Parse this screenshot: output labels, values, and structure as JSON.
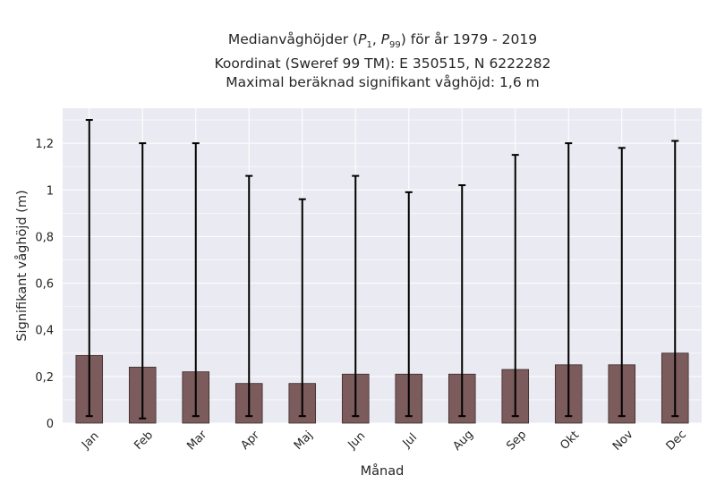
{
  "chart_data": {
    "type": "bar",
    "title_lines": [
      "Medianvåghöjder (P1, P99) för år 1979 - 2019",
      "Koordinat (Sweref 99 TM): E 350515, N 6222282",
      "Maximal beräknad signifikant våghöjd: 1,6 m"
    ],
    "title_math": {
      "prefix": "Medianvåghöjder (",
      "p1": "P",
      "p1_sub": "1",
      "p99": "P",
      "p99_sub": "99",
      "suffix": ") för år 1979 - 2019"
    },
    "xlabel": "Månad",
    "ylabel": "Signifikant våghöjd (m)",
    "categories": [
      "Jan",
      "Feb",
      "Mar",
      "Apr",
      "Maj",
      "Jun",
      "Jul",
      "Aug",
      "Sep",
      "Okt",
      "Nov",
      "Dec"
    ],
    "series": [
      {
        "values": [
          0.29,
          0.24,
          0.22,
          0.17,
          0.17,
          0.21,
          0.21,
          0.21,
          0.23,
          0.25,
          0.25,
          0.3
        ],
        "error_low": [
          0.03,
          0.02,
          0.03,
          0.03,
          0.03,
          0.03,
          0.03,
          0.03,
          0.03,
          0.03,
          0.03,
          0.03
        ],
        "error_high": [
          1.3,
          1.2,
          1.2,
          1.06,
          0.96,
          1.06,
          0.99,
          1.02,
          1.15,
          1.2,
          1.18,
          1.21
        ]
      }
    ],
    "yticks": [
      0,
      0.2,
      0.4,
      0.6,
      0.8,
      1,
      1.2
    ],
    "ytick_labels": [
      "0",
      "0,2",
      "0,4",
      "0,6",
      "0,8",
      "1",
      "1,2"
    ],
    "ylim": [
      0,
      1.35
    ],
    "grid": true,
    "colors": {
      "bar": "#7b5b5b",
      "bar_edge": "#3b2a2a",
      "error": "#000000",
      "plot_bg": "#eaeaf2",
      "grid": "#ffffff"
    }
  }
}
